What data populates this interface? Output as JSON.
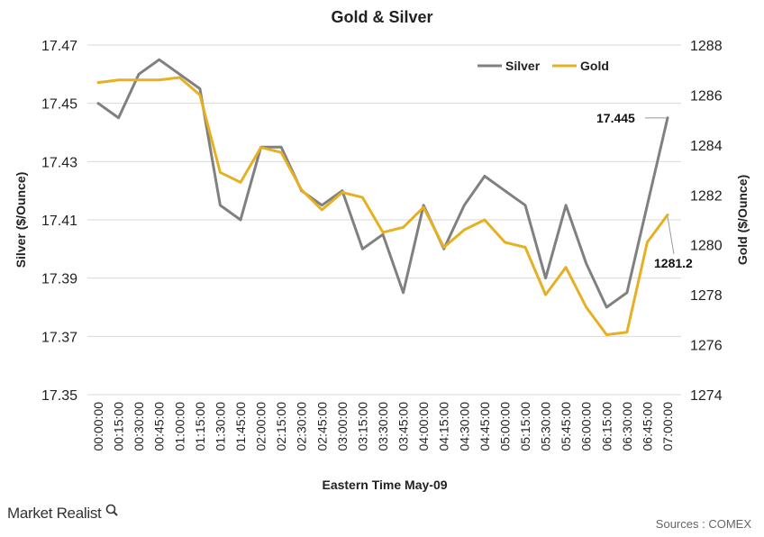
{
  "brand": {
    "name": "Market Realist",
    "source": "Sources : COMEX"
  },
  "chart_data": {
    "type": "line",
    "title": "Gold & Silver",
    "xlabel": "Eastern Time May-09",
    "ylabel_left": "Silver ($/Ounce)",
    "ylabel_right": "Gold ($/Ounce)",
    "ylim_left": [
      17.35,
      17.47
    ],
    "yticks_left": [
      "17.47",
      "17.45",
      "17.43",
      "17.41",
      "17.39",
      "17.37",
      "17.35"
    ],
    "ylim_right": [
      1274,
      1288
    ],
    "yticks_right": [
      "1288",
      "1286",
      "1284",
      "1282",
      "1280",
      "1278",
      "1276",
      "1274"
    ],
    "grid": true,
    "legend_position": "top-right",
    "x": [
      "00:00:00",
      "00:15:00",
      "00:30:00",
      "00:45:00",
      "01:00:00",
      "01:15:00",
      "01:30:00",
      "01:45:00",
      "02:00:00",
      "02:15:00",
      "02:30:00",
      "02:45:00",
      "03:00:00",
      "03:15:00",
      "03:30:00",
      "03:45:00",
      "04:00:00",
      "04:15:00",
      "04:30:00",
      "04:45:00",
      "05:00:00",
      "05:15:00",
      "05:30:00",
      "05:45:00",
      "06:00:00",
      "06:15:00",
      "06:30:00",
      "06:45:00",
      "07:00:00"
    ],
    "series": [
      {
        "name": "Silver",
        "axis": "left",
        "color": "#808080",
        "values": [
          17.45,
          17.445,
          17.46,
          17.465,
          17.46,
          17.455,
          17.415,
          17.41,
          17.435,
          17.435,
          17.42,
          17.415,
          17.42,
          17.4,
          17.405,
          17.385,
          17.415,
          17.4,
          17.415,
          17.425,
          17.42,
          17.415,
          17.39,
          17.415,
          17.395,
          17.38,
          17.385,
          17.415,
          17.445
        ]
      },
      {
        "name": "Gold",
        "axis": "right",
        "color": "#E5B122",
        "values": [
          1286.5,
          1286.6,
          1286.6,
          1286.6,
          1286.7,
          1286.0,
          1282.9,
          1282.5,
          1283.9,
          1283.7,
          1282.2,
          1281.4,
          1282.1,
          1281.9,
          1280.5,
          1280.7,
          1281.5,
          1279.9,
          1280.6,
          1281.0,
          1280.1,
          1279.9,
          1278.0,
          1279.1,
          1277.5,
          1276.4,
          1276.5,
          1280.1,
          1281.2
        ]
      }
    ],
    "annotations": [
      {
        "text": "17.445",
        "series": "Silver",
        "index": 28
      },
      {
        "text": "1281.2",
        "series": "Gold",
        "index": 28
      }
    ]
  }
}
